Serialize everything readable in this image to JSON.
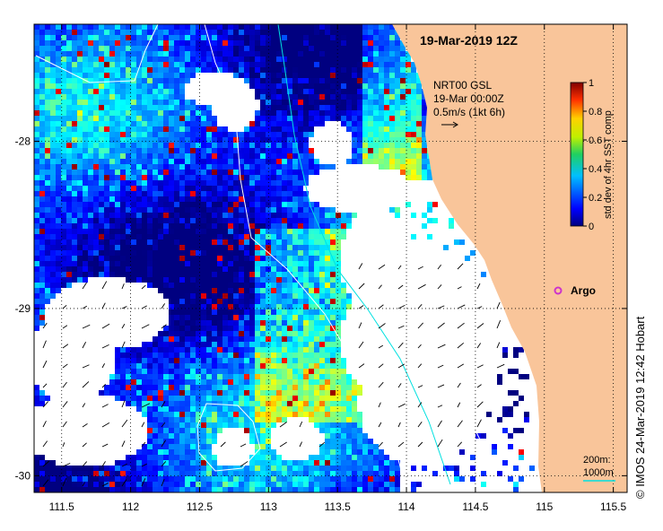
{
  "map": {
    "title": "19-Mar-2019 12Z",
    "x_ticks": [
      "111.5",
      "112",
      "112.5",
      "113",
      "113.5",
      "114",
      "114.5",
      "115",
      "115.5"
    ],
    "y_ticks": [
      "-28",
      "-29",
      "-30"
    ],
    "lon_range": [
      111.3,
      115.6
    ],
    "lat_range": [
      -27.3,
      -30.1
    ],
    "land_color": "#f9c59a",
    "no_data_color": "#ffffff"
  },
  "current_legend": {
    "line1": "NRT00 GSL",
    "line2": "19-Mar 00:00Z",
    "line3": "0.5m/s (1kt 6h)"
  },
  "colorbar": {
    "label": "std dev of 4hr SST comp",
    "ticks": [
      "0",
      "0.2",
      "0.4",
      "0.6",
      "0.8",
      "1"
    ],
    "colormap": "jet"
  },
  "markers": {
    "argo_label": "Argo",
    "argo_color": "#cc33cc"
  },
  "bathymetry_legend": {
    "line1": "200m:",
    "line2": "1000m"
  },
  "credit": "© IMOS 24-Mar-2019 12:42 Hobart"
}
